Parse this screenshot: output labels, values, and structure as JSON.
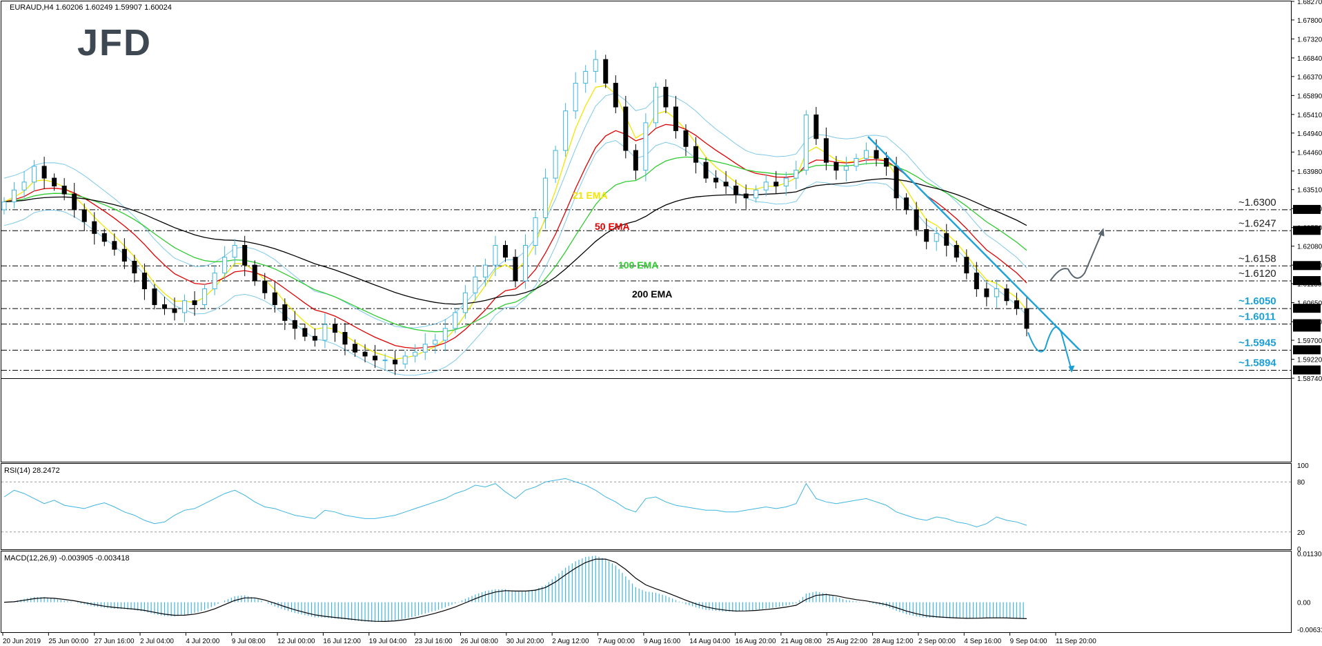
{
  "logo": "JFD",
  "symbol_header": "EURAUD,H4  1.60206 1.60249 1.59907 1.60024",
  "rsi_header": "RSI(14) 28.2472",
  "macd_header": "MACD(12,26,9) -0.003905 -0.003418",
  "chart_data": [
    {
      "type": "candlestick",
      "symbol": "EURAUD",
      "timeframe": "H4",
      "ohlc_last": [
        1.60206,
        1.60249,
        1.59907,
        1.60024
      ],
      "ylim": [
        1.5874,
        1.6827
      ],
      "price_ticks": [
        "1.68270",
        "1.67800",
        "1.67320",
        "1.66840",
        "1.66370",
        "1.65890",
        "1.65410",
        "1.64940",
        "1.64460",
        "1.63980",
        "1.63510",
        "1.63030",
        "1.62550",
        "1.62080",
        "1.61600",
        "1.61130",
        "1.60650",
        "1.60170",
        "1.59700",
        "1.59220",
        "1.58740"
      ],
      "time_labels": [
        "20 Jun 2019",
        "25 Jun 00:00",
        "27 Jun 16:00",
        "2 Jul 04:00",
        "4 Jul 20:00",
        "9 Jul 08:00",
        "12 Jul 00:00",
        "16 Jul 12:00",
        "19 Jul 04:00",
        "23 Jul 16:00",
        "26 Jul 08:00",
        "30 Jul 20:00",
        "2 Aug 12:00",
        "7 Aug 00:00",
        "9 Aug 16:00",
        "14 Aug 04:00",
        "16 Aug 20:00",
        "21 Aug 08:00",
        "25 Aug 22:00",
        "28 Aug 12:00",
        "2 Sep 00:00",
        "4 Sep 16:00",
        "9 Sep 04:00",
        "11 Sep 20:00"
      ],
      "close_series": [
        1.632,
        1.635,
        1.637,
        1.641,
        1.638,
        1.636,
        1.634,
        1.63,
        1.627,
        1.624,
        1.622,
        1.62,
        1.617,
        1.614,
        1.61,
        1.606,
        1.605,
        1.604,
        1.607,
        1.606,
        1.61,
        1.614,
        1.618,
        1.621,
        1.616,
        1.612,
        1.609,
        1.606,
        1.602,
        1.6,
        1.598,
        1.597,
        1.601,
        1.599,
        1.596,
        1.594,
        1.593,
        1.592,
        1.592,
        1.591,
        1.593,
        1.594,
        1.596,
        1.597,
        1.6,
        1.604,
        1.609,
        1.613,
        1.616,
        1.621,
        1.618,
        1.612,
        1.621,
        1.628,
        1.638,
        1.645,
        1.655,
        1.662,
        1.665,
        1.668,
        1.662,
        1.656,
        1.645,
        1.64,
        1.652,
        1.661,
        1.656,
        1.65,
        1.646,
        1.642,
        1.638,
        1.637,
        1.636,
        1.634,
        1.633,
        1.635,
        1.637,
        1.636,
        1.638,
        1.64,
        1.654,
        1.648,
        1.642,
        1.64,
        1.641,
        1.643,
        1.645,
        1.643,
        1.641,
        1.633,
        1.63,
        1.625,
        1.622,
        1.624,
        1.621,
        1.618,
        1.614,
        1.61,
        1.608,
        1.61,
        1.607,
        1.605,
        1.6
      ],
      "ema_labels": [
        "21 EMA",
        "50 EMA",
        "100 EMA",
        "200 EMA"
      ],
      "ema_colors": [
        "#f2e600",
        "#e00000",
        "#2ecc2e",
        "#000000"
      ],
      "levels": [
        {
          "label": "~1.6300",
          "box": "1.63000",
          "value": 1.63
        },
        {
          "label": "~1.6247",
          "box": "1.62470",
          "value": 1.6247
        },
        {
          "label": "~1.6158",
          "box": "1.61580",
          "value": 1.6158
        },
        {
          "label": "~1.6120",
          "box": "1.61200",
          "value": 1.612
        },
        {
          "label": "~1.6050",
          "box": "1.60500",
          "value": 1.605
        },
        {
          "label": "~1.6011",
          "box": "1.60110",
          "value": 1.6011
        },
        {
          "label": "~1.5945",
          "box": "1.59450",
          "value": 1.5945
        },
        {
          "label": "~1.5894",
          "box": "1.58940",
          "value": 1.5894
        }
      ],
      "price_box_last": "1.60024",
      "colors": {
        "bull": "#3fb4e0",
        "bear": "#000000",
        "band": "#7ec8ea",
        "trend": "#1fa3d8",
        "level_dark": "#000000",
        "level_blue": "#1aa0d6",
        "arrow_grey": "#5b6770"
      }
    },
    {
      "type": "line",
      "name": "RSI(14)",
      "current": 28.2472,
      "ylim": [
        0,
        100
      ],
      "ticks": [
        "100",
        "80",
        "20",
        "0"
      ],
      "ref_lines": [
        80,
        20
      ],
      "values": [
        62,
        70,
        66,
        60,
        54,
        58,
        52,
        50,
        48,
        52,
        55,
        50,
        44,
        40,
        34,
        30,
        32,
        40,
        46,
        48,
        54,
        60,
        66,
        70,
        64,
        56,
        50,
        48,
        44,
        40,
        38,
        36,
        46,
        44,
        40,
        38,
        36,
        36,
        38,
        40,
        44,
        48,
        52,
        56,
        60,
        66,
        70,
        76,
        74,
        78,
        68,
        60,
        70,
        74,
        80,
        82,
        84,
        80,
        76,
        70,
        62,
        56,
        48,
        44,
        60,
        62,
        56,
        52,
        50,
        48,
        46,
        46,
        44,
        44,
        46,
        48,
        50,
        48,
        50,
        54,
        78,
        60,
        56,
        54,
        56,
        58,
        60,
        56,
        52,
        44,
        40,
        36,
        34,
        38,
        36,
        32,
        30,
        26,
        30,
        38,
        34,
        32,
        28
      ],
      "color": "#3fb4e0"
    },
    {
      "type": "histogram+line",
      "name": "MACD(12,26,9)",
      "main": -0.003905,
      "signal": -0.003418,
      "ylim": [
        -0.006319,
        0.011303
      ],
      "ticks": [
        "0.011303",
        "0.00",
        "-0.006319"
      ],
      "values": [
        0.0,
        0.0002,
        0.0008,
        0.0012,
        0.0012,
        0.0008,
        0.0004,
        0.0,
        -0.0005,
        -0.001,
        -0.0013,
        -0.0015,
        -0.0016,
        -0.0018,
        -0.0022,
        -0.0028,
        -0.0032,
        -0.0033,
        -0.003,
        -0.0025,
        -0.0018,
        -0.0008,
        0.0004,
        0.0014,
        0.0016,
        0.001,
        0.0,
        -0.001,
        -0.0018,
        -0.0025,
        -0.003,
        -0.0035,
        -0.0036,
        -0.0038,
        -0.004,
        -0.0043,
        -0.0045,
        -0.0046,
        -0.0045,
        -0.0042,
        -0.0038,
        -0.0033,
        -0.0026,
        -0.002,
        -0.0012,
        -0.0003,
        0.0008,
        0.0018,
        0.0026,
        0.003,
        0.003,
        0.0025,
        0.0026,
        0.003,
        0.004,
        0.006,
        0.008,
        0.0095,
        0.0105,
        0.0108,
        0.01,
        0.0085,
        0.006,
        0.0035,
        0.0025,
        0.0022,
        0.0015,
        0.0005,
        -0.0005,
        -0.0012,
        -0.0018,
        -0.002,
        -0.0022,
        -0.0022,
        -0.002,
        -0.0018,
        -0.0015,
        -0.0012,
        -0.0008,
        -0.0003,
        0.002,
        0.0025,
        0.002,
        0.0012,
        0.0005,
        0.0002,
        0.0,
        -0.0005,
        -0.001,
        -0.002,
        -0.0028,
        -0.0033,
        -0.0036,
        -0.0036,
        -0.0037,
        -0.0038,
        -0.0038,
        -0.0037,
        -0.0036,
        -0.0036,
        -0.0037,
        -0.0038,
        -0.0039
      ],
      "color_hist": "#3fb4e0",
      "color_signal": "#000000"
    }
  ]
}
